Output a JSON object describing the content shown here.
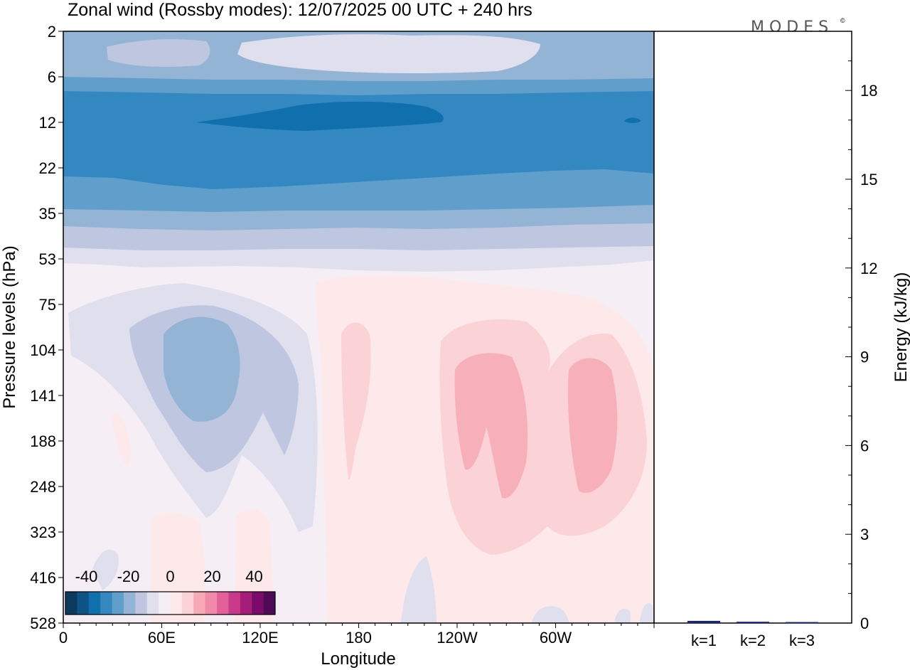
{
  "chart_data": [
    {
      "type": "heatmap",
      "title": "Zonal wind (Rossby modes):  12/07/2025  00 UTC  + 240 hrs",
      "xlabel": "Longitude",
      "ylabel": "Pressure levels (hPa)",
      "x_ticks": [
        "0",
        "60E",
        "120E",
        "180",
        "120W",
        "60W"
      ],
      "x_tick_degrees": [
        0,
        60,
        120,
        180,
        240,
        300
      ],
      "xlim": [
        0,
        360
      ],
      "y_ticks": [
        "2",
        "6",
        "12",
        "22",
        "35",
        "53",
        "75",
        "104",
        "141",
        "188",
        "248",
        "323",
        "416",
        "528"
      ],
      "y_scale": "model levels (inverted, top = 2 hPa)",
      "colorbar": {
        "tick_labels": [
          "-40",
          "-20",
          "0",
          "20",
          "40"
        ],
        "tick_values": [
          -40,
          -20,
          0,
          20,
          40
        ],
        "range": [
          -50,
          50
        ],
        "step": 5,
        "colors": [
          "#0b3a5e",
          "#0d5384",
          "#1070ad",
          "#3488c1",
          "#609fcb",
          "#93b4d5",
          "#bfc6e0",
          "#e0dfee",
          "#f5eef5",
          "#fde9ea",
          "#fbd2d5",
          "#f7a9b6",
          "#f18aaa",
          "#e36099",
          "#c93a8a",
          "#a61d78",
          "#7b0b6a",
          "#4d0a56"
        ]
      },
      "contour_regions": [
        {
          "label": "approx. -20 m/s",
          "lon": [
            60,
            360
          ],
          "p_range": [
            "12",
            "22"
          ]
        },
        {
          "label": "approx. -15 to -10 m/s",
          "lon": [
            0,
            360
          ],
          "p_range": [
            "6",
            "35"
          ]
        },
        {
          "label": "approx. -10 m/s core",
          "lon": [
            60,
            105
          ],
          "p_range": [
            "104",
            "188"
          ]
        },
        {
          "label": "approx. +10 m/s core",
          "lon": [
            240,
            330
          ],
          "p_range": [
            "104",
            "248"
          ]
        }
      ]
    },
    {
      "type": "bar",
      "ylabel": "Energy (kJ/kg)",
      "categories": [
        "k=1",
        "k=2",
        "k=3"
      ],
      "values": [
        0.05,
        0.02,
        0.01
      ],
      "ylim": [
        0,
        20
      ],
      "y_ticks": [
        "0",
        "3",
        "6",
        "9",
        "12",
        "15",
        "18"
      ],
      "y_tick_values": [
        0,
        3,
        6,
        9,
        12,
        15,
        18
      ],
      "bar_colors": [
        "#1a237e",
        "#1a237e",
        "#1a237e"
      ]
    }
  ],
  "logo": {
    "text": "MODES",
    "mark": "©"
  }
}
